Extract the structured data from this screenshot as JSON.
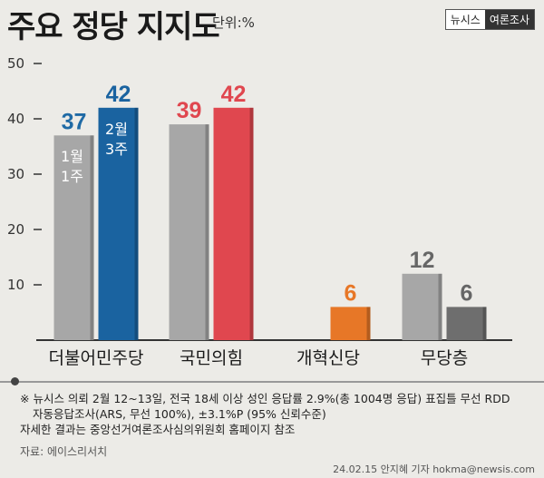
{
  "header": {
    "title": "주요 정당 지지도",
    "unit": "단위:%",
    "badge_left": "뉴시스",
    "badge_right": "여론조사"
  },
  "chart_data": {
    "type": "bar",
    "title": "주요 정당 지지도",
    "unit": "단위:%",
    "categories": [
      "더불어민주당",
      "국민의힘",
      "개혁신당",
      "무당층"
    ],
    "series": [
      {
        "name": "1월 1주",
        "values": [
          37,
          39,
          null,
          12
        ]
      },
      {
        "name": "2월 3주",
        "values": [
          42,
          42,
          6,
          6
        ]
      }
    ],
    "ylim": [
      0,
      50
    ],
    "yticks": [
      10,
      20,
      30,
      40,
      50
    ],
    "colors": {
      "prev": "#a7a7a7",
      "prev_dark": "#6f6f6f",
      "prev_label": "#1f6aa5",
      "democratic": "#1a63a0",
      "ppp": "#e0474f",
      "reform": "#e77727",
      "noparty_now": "#6e6e6e",
      "noparty_label": "#666666"
    },
    "inbar_labels": [
      {
        "category": "더불어민주당",
        "series": 0,
        "text_top": "1월",
        "text_bottom": "1주"
      },
      {
        "category": "더불어민주당",
        "series": 1,
        "text_top": "2월",
        "text_bottom": "3주"
      }
    ]
  },
  "notes": {
    "line1": "※ 뉴시스 의뢰 2월 12~13일, 전국 18세 이상 성인 응답률 2.9%(총 1004명 응답) 표집틀 무선 RDD",
    "line2": "자동응답조사(ARS, 무선 100%), ±3.1%P (95% 신뢰수준)",
    "line3": "자세한 결과는 중앙선거여론조사심의위원회 홈페이지 참조",
    "source": "자료: 에이스리서치",
    "credit": "24.02.15 안지혜 기자 hokma@newsis.com"
  }
}
